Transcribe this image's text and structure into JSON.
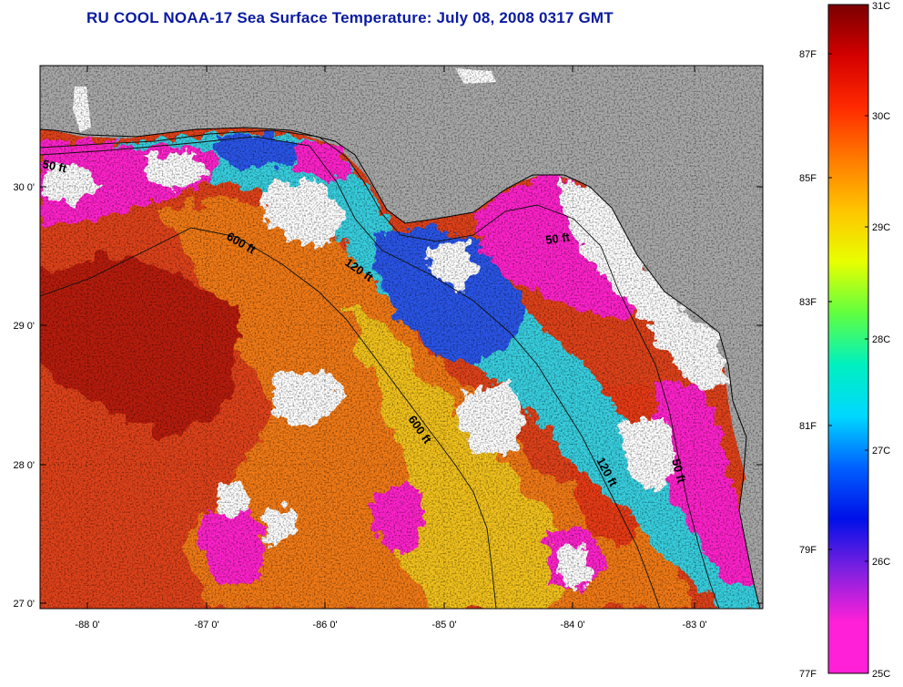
{
  "title": "RU COOL  NOAA-17  Sea Surface Temperature:  July 08, 2008 0317 GMT",
  "colors": {
    "land": "#a9a9a9",
    "cloud": "#ffffff",
    "warm_gulf": "#e0421a",
    "hot_core": "#b81a0c",
    "orange": "#f27a14",
    "yellow": "#f2c21a",
    "cyan": "#38d0e0",
    "blue": "#2a55e8",
    "magenta": "#ff22cc",
    "title": "#0a1aa0"
  },
  "axes": {
    "x_ticks": [
      "-88 0'",
      "-87 0'",
      "-86 0'",
      "-85 0'",
      "-84 0'",
      "-83 0'"
    ],
    "y_ticks": [
      "30 0'",
      "29 0'",
      "28 0'",
      "27 0'"
    ]
  },
  "isobath_labels": [
    {
      "id": "iso-50-west",
      "text": "50 ft"
    },
    {
      "id": "iso-600-north",
      "text": "600 ft"
    },
    {
      "id": "iso-120-north",
      "text": "120 ft"
    },
    {
      "id": "iso-50-bigbend",
      "text": "50 ft"
    },
    {
      "id": "iso-600-south",
      "text": "600 ft"
    },
    {
      "id": "iso-120-south",
      "text": "120 ft"
    },
    {
      "id": "iso-50-south",
      "text": "50 ft"
    }
  ],
  "colorbar": {
    "celsius": [
      "31C",
      "30C",
      "29C",
      "28C",
      "27C",
      "26C",
      "25C"
    ],
    "fahrenheit": [
      "87F",
      "85F",
      "83F",
      "81F",
      "79F",
      "77F"
    ],
    "stops": [
      "#7a0000",
      "#d40000",
      "#ff2a00",
      "#ff7a00",
      "#ffc400",
      "#e8ff00",
      "#60ff40",
      "#00f0c0",
      "#00d8ff",
      "#0060ff",
      "#0010e8",
      "#8020e0",
      "#ff20d8",
      "#ff20d8"
    ]
  }
}
